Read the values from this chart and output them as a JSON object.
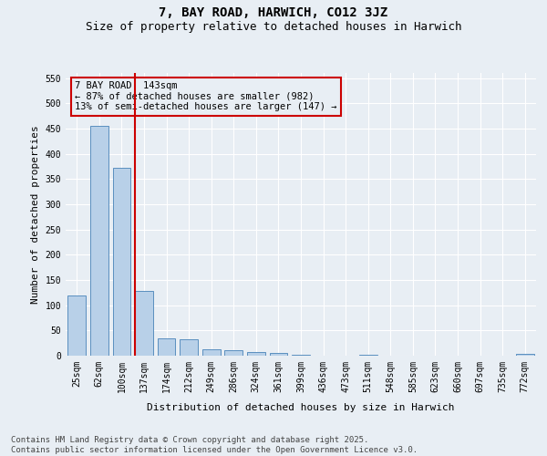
{
  "title_line1": "7, BAY ROAD, HARWICH, CO12 3JZ",
  "title_line2": "Size of property relative to detached houses in Harwich",
  "xlabel": "Distribution of detached houses by size in Harwich",
  "ylabel": "Number of detached properties",
  "footer_line1": "Contains HM Land Registry data © Crown copyright and database right 2025.",
  "footer_line2": "Contains public sector information licensed under the Open Government Licence v3.0.",
  "categories": [
    "25sqm",
    "62sqm",
    "100sqm",
    "137sqm",
    "174sqm",
    "212sqm",
    "249sqm",
    "286sqm",
    "324sqm",
    "361sqm",
    "399sqm",
    "436sqm",
    "473sqm",
    "511sqm",
    "548sqm",
    "585sqm",
    "623sqm",
    "660sqm",
    "697sqm",
    "735sqm",
    "772sqm"
  ],
  "values": [
    120,
    455,
    372,
    128,
    35,
    33,
    12,
    10,
    7,
    5,
    1,
    0,
    0,
    1,
    0,
    0,
    0,
    0,
    0,
    0,
    4
  ],
  "bar_color": "#b8d0e8",
  "bar_edge_color": "#5a8fbf",
  "background_color": "#e8eef4",
  "grid_color": "#ffffff",
  "annotation_line1": "7 BAY ROAD: 143sqm",
  "annotation_line2": "← 87% of detached houses are smaller (982)",
  "annotation_line3": "13% of semi-detached houses are larger (147) →",
  "annotation_box_color": "#cc0000",
  "vline_x_index": 3,
  "vline_color": "#cc0000",
  "ylim": [
    0,
    560
  ],
  "yticks": [
    0,
    50,
    100,
    150,
    200,
    250,
    300,
    350,
    400,
    450,
    500,
    550
  ],
  "title_fontsize": 10,
  "subtitle_fontsize": 9,
  "axis_label_fontsize": 8,
  "tick_fontsize": 7,
  "footer_fontsize": 6.5,
  "annotation_fontsize": 7.5
}
